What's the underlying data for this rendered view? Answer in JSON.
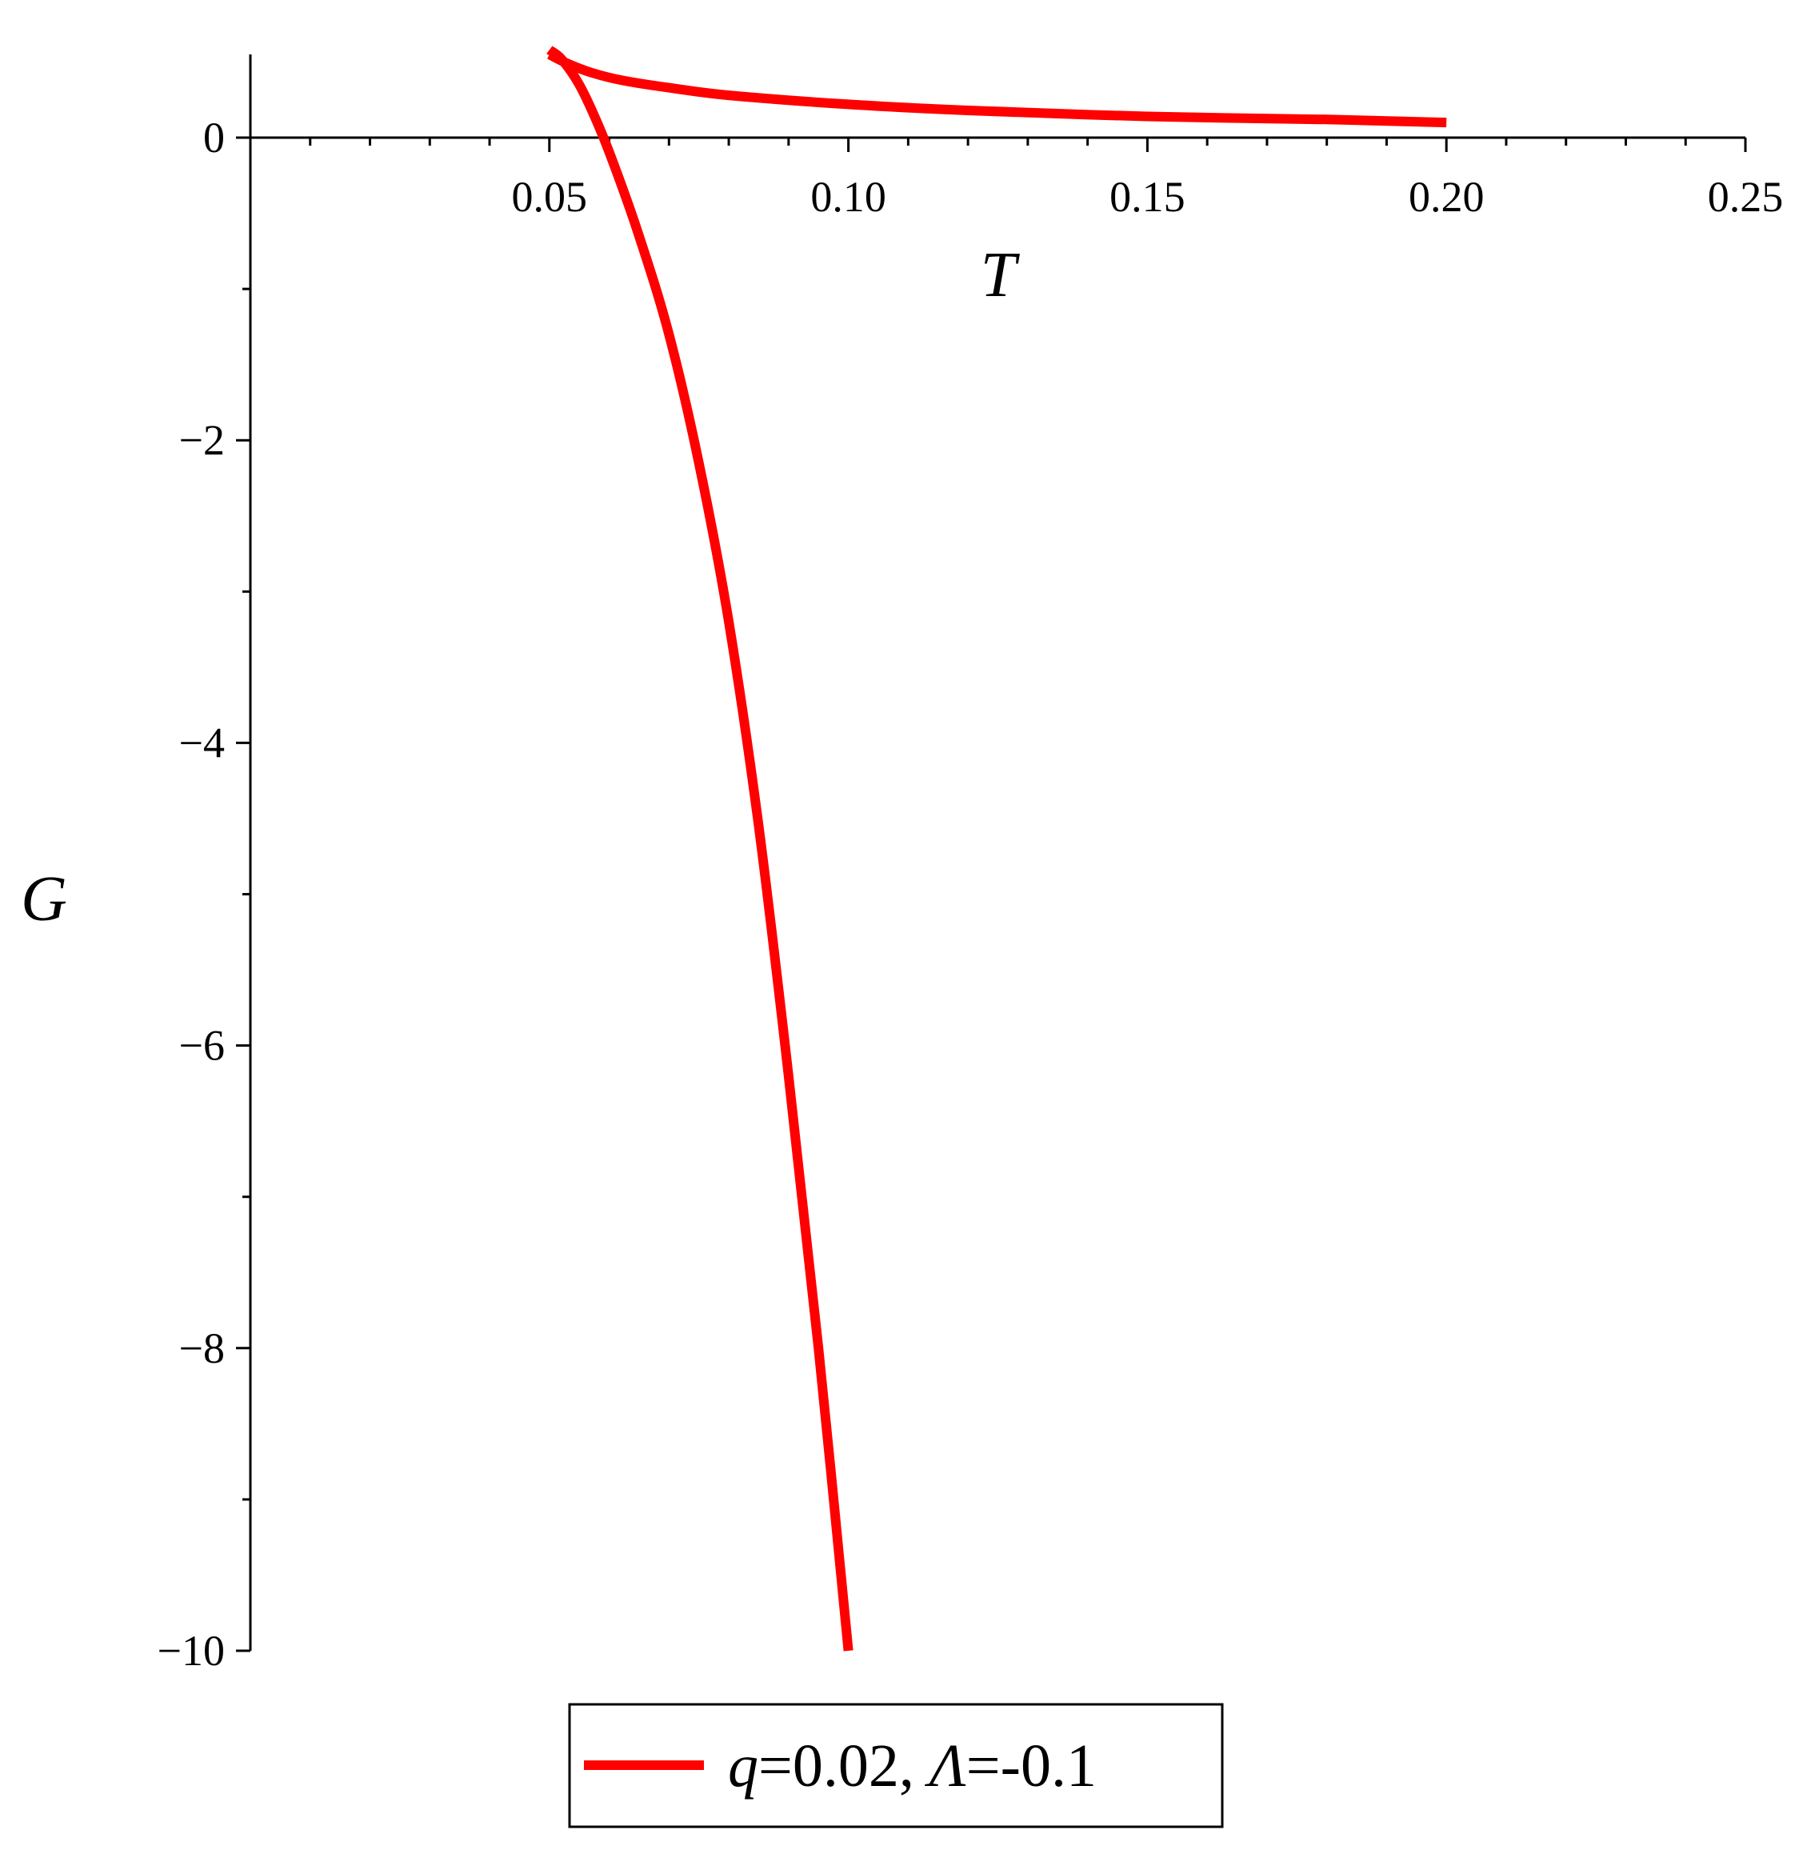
{
  "chart_data": {
    "type": "line",
    "title": "",
    "xlabel": "T",
    "ylabel": "G",
    "xlim": [
      0,
      0.25
    ],
    "ylim": [
      -10,
      0.55
    ],
    "x_ticks": [
      0.05,
      0.1,
      0.15,
      0.2,
      0.25
    ],
    "x_tick_labels": [
      "0.05",
      "0.10",
      "0.15",
      "0.20",
      "0.25"
    ],
    "x_minor_step": 0.01,
    "y_ticks": [
      0,
      -2,
      -4,
      -6,
      -8,
      -10
    ],
    "y_tick_labels": [
      "0",
      "−2",
      "−4",
      "−6",
      "−8",
      "−10"
    ],
    "y_minor_step": 1,
    "grid": false,
    "legend_position": "bottom",
    "series": [
      {
        "name": "q=0.02, Λ=-0.1",
        "legend": {
          "var1": "q",
          "eq1": "=0.02, ",
          "var2": "Λ",
          "eq2": "=-0.1"
        },
        "color": "#ff0000",
        "branches": [
          {
            "x": [
              0.05,
              0.053,
              0.057,
              0.062,
              0.07,
              0.08,
              0.1,
              0.12,
              0.15,
              0.18,
              0.2
            ],
            "y": [
              0.55,
              0.49,
              0.43,
              0.38,
              0.33,
              0.28,
              0.22,
              0.18,
              0.14,
              0.12,
              0.1
            ]
          },
          {
            "x": [
              0.05,
              0.052,
              0.055,
              0.058,
              0.061,
              0.065,
              0.07,
              0.075,
              0.08,
              0.085,
              0.09,
              0.095,
              0.1
            ],
            "y": [
              0.58,
              0.52,
              0.35,
              0.1,
              -0.2,
              -0.65,
              -1.3,
              -2.15,
              -3.2,
              -4.55,
              -6.2,
              -8.0,
              -10.0
            ]
          }
        ]
      }
    ]
  }
}
